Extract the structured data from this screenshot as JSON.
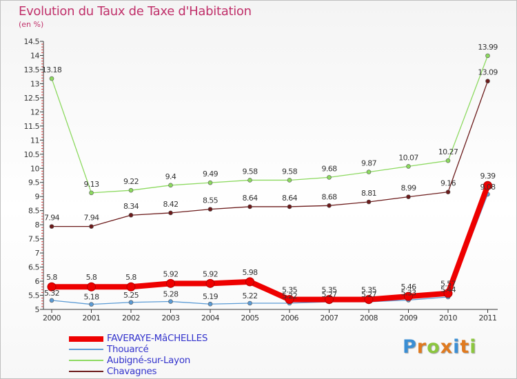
{
  "header": {
    "title": "Evolution du Taux de Taxe d'Habitation",
    "subtitle": "(en %)"
  },
  "logo": {
    "text": "Proxiti",
    "colors": [
      "#3a8ed4",
      "#e07a1f",
      "#8cc63f",
      "#e07a1f",
      "#3a8ed4",
      "#e07a1f",
      "#8cc63f"
    ]
  },
  "chart_data": {
    "type": "line",
    "x": [
      "2000",
      "2001",
      "2002",
      "2003",
      "2004",
      "2005",
      "2006",
      "2007",
      "2008",
      "2009",
      "2010",
      "2011"
    ],
    "ylim": [
      5,
      14.5
    ],
    "yticks": [
      "5",
      "5.5",
      "6",
      "6.5",
      "7",
      "7.5",
      "8",
      "8.5",
      "9",
      "9.5",
      "10",
      "10.5",
      "11",
      "11.5",
      "12",
      "12.5",
      "13",
      "13.5",
      "14",
      "14.5"
    ],
    "grid": false,
    "legend_position": "bottom-left",
    "series": [
      {
        "name": "FAVERAYE-MâCHELLES",
        "color": "#ee0000",
        "values": [
          5.8,
          5.8,
          5.8,
          5.92,
          5.92,
          5.98,
          5.35,
          5.35,
          5.35,
          5.46,
          5.57,
          9.39
        ],
        "labels": [
          "5.8",
          "5.8",
          "5.8",
          "5.92",
          "5.92",
          "5.98",
          "5.35",
          "5.35",
          "5.35",
          "5.46",
          "5.57",
          "9.39"
        ]
      },
      {
        "name": "Thouarcé",
        "color": "#5b9bd5",
        "values": [
          5.32,
          5.18,
          5.25,
          5.28,
          5.19,
          5.22,
          5.22,
          5.27,
          5.27,
          5.33,
          5.44,
          9.08
        ],
        "labels": [
          "5.32",
          "5.18",
          "5.25",
          "5.28",
          "5.19",
          "5.22",
          "5.22",
          "5.27",
          "5.27",
          "5.33",
          "5.44",
          "9.08"
        ]
      },
      {
        "name": "Aubigné-sur-Layon",
        "color": "#8cd95f",
        "values": [
          13.18,
          9.13,
          9.22,
          9.4,
          9.49,
          9.58,
          9.58,
          9.68,
          9.87,
          10.07,
          10.27,
          13.99
        ],
        "labels": [
          "13.18",
          "9.13",
          "9.22",
          "9.4",
          "9.49",
          "9.58",
          "9.58",
          "9.68",
          "9.87",
          "10.07",
          "10.27",
          "13.99"
        ]
      },
      {
        "name": "Chavagnes",
        "color": "#6b1a1a",
        "values": [
          7.94,
          7.94,
          8.34,
          8.42,
          8.55,
          8.64,
          8.64,
          8.68,
          8.81,
          8.99,
          9.16,
          13.09
        ],
        "labels": [
          "7.94",
          "7.94",
          "8.34",
          "8.42",
          "8.55",
          "8.64",
          "8.64",
          "8.68",
          "8.81",
          "8.99",
          "9.16",
          "13.09"
        ]
      }
    ]
  }
}
